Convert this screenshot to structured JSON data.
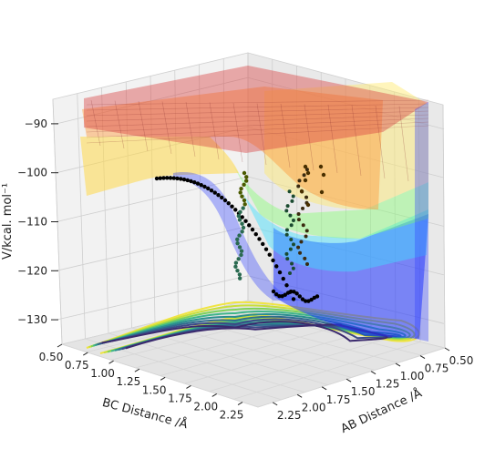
{
  "chart_data": {
    "type": "surface3d",
    "title": "",
    "zlabel": "V/kcal. mol$^{-1}$",
    "zlabel_display": "V/kcal. mol⁻¹",
    "xlabel": "BC Distance /Å",
    "ylabel": "AB Distance /Å",
    "x_ticks": [
      "0.50",
      "0.75",
      "1.00",
      "1.25",
      "1.50",
      "1.75",
      "2.00",
      "2.25"
    ],
    "y_ticks": [
      "0.50",
      "0.75",
      "1.00",
      "1.25",
      "1.50",
      "1.75",
      "2.00",
      "2.25"
    ],
    "z_ticks": [
      "−90",
      "−100",
      "−110",
      "−120",
      "−130"
    ],
    "xlim": [
      0.5,
      2.4
    ],
    "ylim": [
      0.5,
      2.4
    ],
    "zlim": [
      -135,
      -85
    ],
    "grid": true,
    "layers": [
      "surface (jet colormap, semi-transparent)",
      "contour projection (viridis)",
      "trajectory scatter (black points)"
    ],
    "colors": {
      "surface_low": "#1e32ff",
      "surface_mid": "#7cff9a",
      "surface_high": "#ffdf5a",
      "surface_top": "#d94040",
      "points": "#000000",
      "contour_outer": "#f0e442",
      "contour_inner": "#3b2a6e"
    }
  }
}
